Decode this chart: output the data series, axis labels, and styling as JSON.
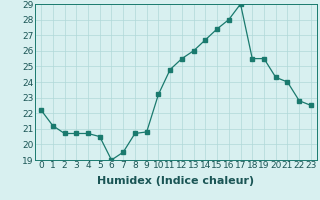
{
  "x": [
    0,
    1,
    2,
    3,
    4,
    5,
    6,
    7,
    8,
    9,
    10,
    11,
    12,
    13,
    14,
    15,
    16,
    17,
    18,
    19,
    20,
    21,
    22,
    23
  ],
  "y": [
    22.2,
    21.2,
    20.7,
    20.7,
    20.7,
    20.5,
    19.0,
    19.5,
    20.7,
    20.8,
    23.2,
    24.8,
    25.5,
    26.0,
    26.7,
    27.4,
    28.0,
    29.0,
    25.5,
    25.5,
    24.3,
    24.0,
    22.8,
    22.5
  ],
  "xlabel": "Humidex (Indice chaleur)",
  "xlim": [
    -0.5,
    23.5
  ],
  "ylim": [
    19,
    29
  ],
  "yticks": [
    19,
    20,
    21,
    22,
    23,
    24,
    25,
    26,
    27,
    28,
    29
  ],
  "xticks": [
    0,
    1,
    2,
    3,
    4,
    5,
    6,
    7,
    8,
    9,
    10,
    11,
    12,
    13,
    14,
    15,
    16,
    17,
    18,
    19,
    20,
    21,
    22,
    23
  ],
  "line_color": "#1a7a6e",
  "marker": "s",
  "marker_size": 2.5,
  "bg_color": "#d8f0f0",
  "grid_color": "#b0d8d8",
  "xlabel_fontsize": 8,
  "tick_fontsize": 6.5
}
